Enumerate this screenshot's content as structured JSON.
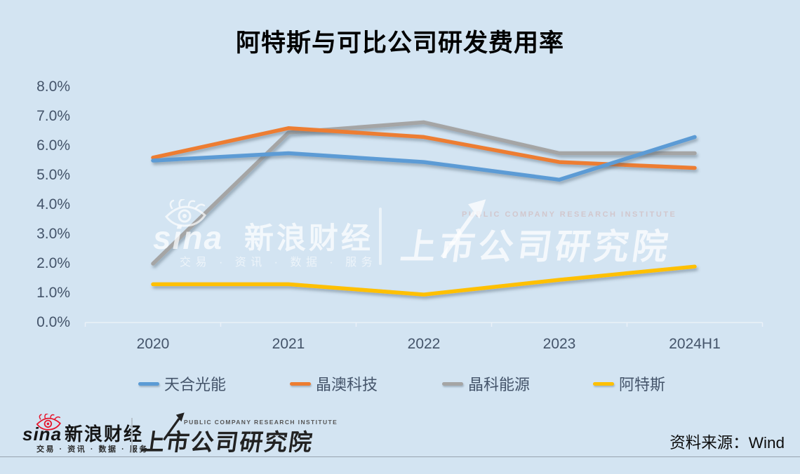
{
  "title": "阿特斯与可比公司研发费用率",
  "chart_data": {
    "type": "line",
    "title": "阿特斯与可比公司研发费用率",
    "categories": [
      "2020",
      "2021",
      "2022",
      "2023",
      "2024H1"
    ],
    "series": [
      {
        "name": "天合光能",
        "color": "#5B9BD5",
        "values": [
          5.5,
          5.75,
          5.45,
          4.85,
          6.3
        ]
      },
      {
        "name": "晶澳科技",
        "color": "#ED7D31",
        "values": [
          5.6,
          6.6,
          6.3,
          5.45,
          5.25
        ]
      },
      {
        "name": "晶科能源",
        "color": "#A5A5A5",
        "values": [
          2.0,
          6.45,
          6.8,
          5.75,
          5.75
        ]
      },
      {
        "name": "阿特斯",
        "color": "#FFC000",
        "values": [
          1.3,
          1.3,
          0.95,
          1.45,
          1.9
        ]
      }
    ],
    "unit": "%",
    "ylim": [
      0,
      8
    ],
    "y_ticks": [
      "8.0%",
      "7.0%",
      "6.0%",
      "5.0%",
      "4.0%",
      "3.0%",
      "2.0%",
      "1.0%",
      "0.0%"
    ],
    "grid": false,
    "legend_position": "bottom"
  },
  "watermark": {
    "sina_text": "sina",
    "brand": "新浪财经",
    "tagline": "交易 · 资讯 · 数据 · 服务",
    "institute_en": "PUBLIC COMPANY RESEARCH INSTITUTE",
    "institute_cn": "上市公司研究院"
  },
  "footer": {
    "sina_text": "sina",
    "brand": "新浪财经",
    "tagline": "交易 · 资讯 · 数据 · 服务",
    "institute_en": "PUBLIC COMPANY RESEARCH INSTITUTE",
    "institute_cn": "上市公司研究院",
    "source": "资料来源：Wind"
  },
  "colors": {
    "background": "#D3E4F2",
    "axis_text": "#44546A",
    "title_text": "#000000",
    "axis_line": "#EAF1F8"
  },
  "icons": {
    "sina_eye": "sina-eye-icon",
    "trend_arrow": "trend-arrow-icon"
  }
}
